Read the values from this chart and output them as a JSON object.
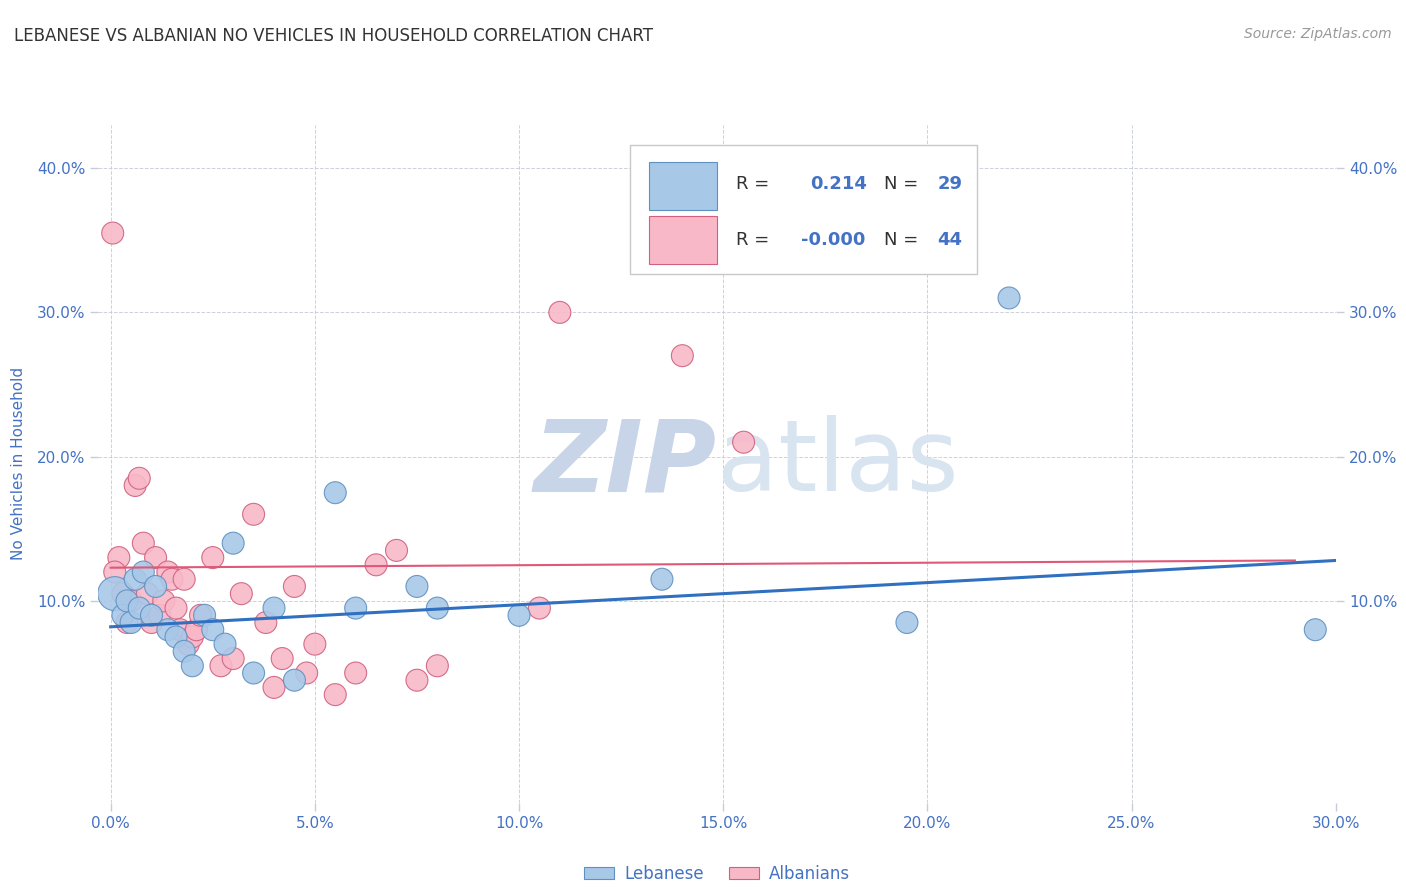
{
  "title": "LEBANESE VS ALBANIAN NO VEHICLES IN HOUSEHOLD CORRELATION CHART",
  "source": "Source: ZipAtlas.com",
  "ylabel": "No Vehicles in Household",
  "x_tick_labels": [
    "0.0%",
    "5.0%",
    "10.0%",
    "15.0%",
    "20.0%",
    "25.0%",
    "30.0%"
  ],
  "x_tick_vals": [
    0,
    5,
    10,
    15,
    20,
    25,
    30
  ],
  "y_tick_labels": [
    "10.0%",
    "20.0%",
    "30.0%",
    "40.0%"
  ],
  "y_tick_vals": [
    10,
    20,
    30,
    40
  ],
  "xlim": [
    -0.3,
    30
  ],
  "ylim": [
    -4,
    43
  ],
  "legend_labels": [
    "Lebanese",
    "Albanians"
  ],
  "legend_R": [
    "0.214",
    "-0.000"
  ],
  "legend_N": [
    29,
    44
  ],
  "blue_scatter_color": "#a8c8e8",
  "pink_scatter_color": "#f8b8c8",
  "blue_edge_color": "#6090c0",
  "pink_edge_color": "#d06080",
  "blue_line_color": "#3070c0",
  "pink_line_color": "#e05878",
  "title_color": "#333333",
  "tick_label_color": "#4472c4",
  "legend_text_color": "#333333",
  "legend_num_color": "#4472c4",
  "watermark_zip_color": "#c8d4e8",
  "watermark_atlas_color": "#d8e4f0",
  "background_color": "#ffffff",
  "grid_color": "#c8ccd8",
  "blue_points_x": [
    0.1,
    0.3,
    0.4,
    0.5,
    0.6,
    0.7,
    0.8,
    1.0,
    1.1,
    1.4,
    1.6,
    1.8,
    2.0,
    2.3,
    2.5,
    2.8,
    3.0,
    3.5,
    4.0,
    4.5,
    5.5,
    6.0,
    7.5,
    8.0,
    10.0,
    13.5,
    19.5,
    22.0,
    29.5
  ],
  "blue_points_y": [
    10.5,
    9.0,
    10.0,
    8.5,
    11.5,
    9.5,
    12.0,
    9.0,
    11.0,
    8.0,
    7.5,
    6.5,
    5.5,
    9.0,
    8.0,
    7.0,
    14.0,
    5.0,
    9.5,
    4.5,
    17.5,
    9.5,
    11.0,
    9.5,
    9.0,
    11.5,
    8.5,
    31.0,
    8.0
  ],
  "blue_sizes": [
    600,
    250,
    250,
    250,
    250,
    250,
    250,
    250,
    250,
    250,
    250,
    250,
    250,
    250,
    250,
    250,
    250,
    250,
    250,
    250,
    250,
    250,
    250,
    250,
    250,
    250,
    250,
    250,
    250
  ],
  "pink_points_x": [
    0.05,
    0.2,
    0.3,
    0.4,
    0.5,
    0.6,
    0.7,
    0.8,
    0.9,
    1.0,
    1.1,
    1.2,
    1.3,
    1.4,
    1.5,
    1.6,
    1.7,
    1.8,
    1.9,
    2.0,
    2.1,
    2.2,
    2.5,
    2.7,
    3.0,
    3.2,
    3.5,
    3.8,
    4.0,
    4.2,
    4.5,
    4.8,
    5.0,
    5.5,
    6.0,
    6.5,
    7.0,
    7.5,
    8.0,
    10.5,
    11.0,
    14.0,
    15.5,
    0.1
  ],
  "pink_points_y": [
    35.5,
    13.0,
    10.5,
    8.5,
    10.0,
    18.0,
    18.5,
    14.0,
    10.5,
    8.5,
    13.0,
    9.0,
    10.0,
    12.0,
    11.5,
    9.5,
    8.0,
    11.5,
    7.0,
    7.5,
    8.0,
    9.0,
    13.0,
    5.5,
    6.0,
    10.5,
    16.0,
    8.5,
    4.0,
    6.0,
    11.0,
    5.0,
    7.0,
    3.5,
    5.0,
    12.5,
    13.5,
    4.5,
    5.5,
    9.5,
    30.0,
    27.0,
    21.0,
    12.0
  ],
  "pink_sizes": [
    250,
    250,
    250,
    250,
    250,
    250,
    250,
    250,
    250,
    250,
    250,
    250,
    250,
    250,
    250,
    250,
    250,
    250,
    250,
    250,
    250,
    250,
    250,
    250,
    250,
    250,
    250,
    250,
    250,
    250,
    250,
    250,
    250,
    250,
    250,
    250,
    250,
    250,
    250,
    250,
    250,
    250,
    250,
    250
  ],
  "blue_line_x": [
    0,
    30
  ],
  "blue_line_y": [
    8.2,
    12.8
  ],
  "pink_line_x": [
    0,
    29
  ],
  "pink_line_y": [
    12.3,
    12.8
  ]
}
